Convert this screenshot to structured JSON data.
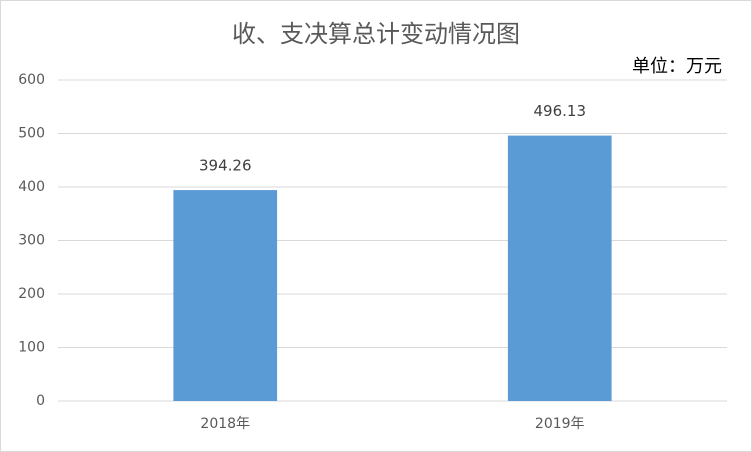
{
  "chart_data": {
    "type": "bar",
    "title": "收、支决算总计变动情况图",
    "annotation": "单位：万元",
    "categories": [
      "2018年",
      "2019年"
    ],
    "values": [
      394.26,
      496.13
    ],
    "color": "#5b9bd5",
    "ylim": [
      0,
      600
    ],
    "yticks": [
      0,
      100,
      200,
      300,
      400,
      500,
      600
    ],
    "grid": true
  }
}
